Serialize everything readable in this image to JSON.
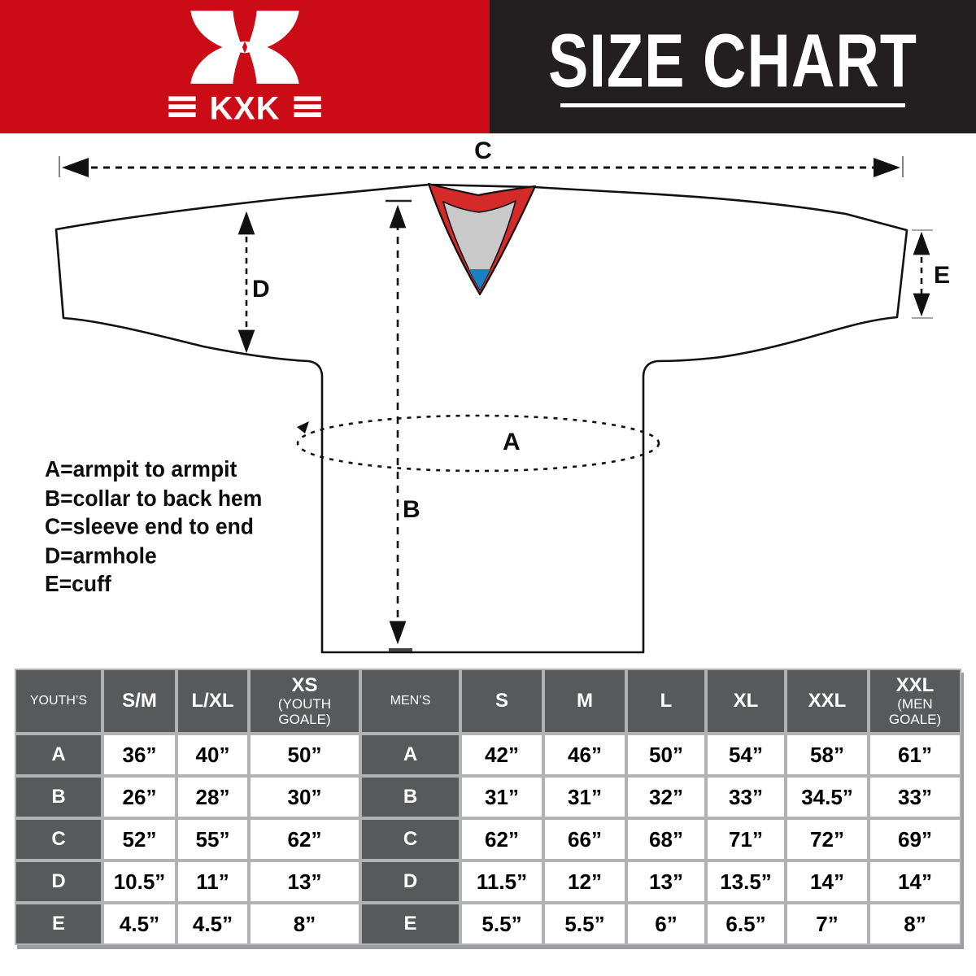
{
  "brand": {
    "name": "KXK",
    "logo_icon": "kxk-x-logo",
    "logo_text": "KXK"
  },
  "header": {
    "title": "SIZE CHART"
  },
  "colors": {
    "brand_red": "#cb0b15",
    "banner_black": "#231f20",
    "collar_red": "#d42a2a",
    "collar_inner_gray": "#c9c9c9",
    "collar_blue": "#1a80c4",
    "table_header_gray": "#58595b",
    "table_gap_gray": "#b0b2b4"
  },
  "diagram": {
    "labels": {
      "a": "A",
      "b": "B",
      "c": "C",
      "d": "D",
      "e": "E"
    },
    "legend": [
      "A=armpit to armpit",
      "B=collar to back hem",
      "C=sleeve end to end",
      "D=armhole",
      "E=cuff"
    ]
  },
  "size_table": {
    "youth": {
      "group_label": "YOUTH’S",
      "columns": [
        "S/M",
        "L/XL",
        "XS"
      ],
      "column_subs": [
        "",
        "",
        "(YOUTH GOALE)"
      ],
      "rows": [
        {
          "label": "A",
          "values": [
            "36”",
            "40”",
            "50”"
          ]
        },
        {
          "label": "B",
          "values": [
            "26”",
            "28”",
            "30”"
          ]
        },
        {
          "label": "C",
          "values": [
            "52”",
            "55”",
            "62”"
          ]
        },
        {
          "label": "D",
          "values": [
            "10.5”",
            "11”",
            "13”"
          ]
        },
        {
          "label": "E",
          "values": [
            "4.5”",
            "4.5”",
            "8”"
          ]
        }
      ]
    },
    "men": {
      "group_label": "MEN’S",
      "columns": [
        "S",
        "M",
        "L",
        "XL",
        "XXL",
        "XXL"
      ],
      "column_subs": [
        "",
        "",
        "",
        "",
        "",
        "(MEN GOALE)"
      ],
      "rows": [
        {
          "label": "A",
          "values": [
            "42”",
            "46”",
            "50”",
            "54”",
            "58”",
            "61”"
          ]
        },
        {
          "label": "B",
          "values": [
            "31”",
            "31”",
            "32”",
            "33”",
            "34.5”",
            "33”"
          ]
        },
        {
          "label": "C",
          "values": [
            "62”",
            "66”",
            "68”",
            "71”",
            "72”",
            "69”"
          ]
        },
        {
          "label": "D",
          "values": [
            "11.5”",
            "12”",
            "13”",
            "13.5”",
            "14”",
            "14”"
          ]
        },
        {
          "label": "E",
          "values": [
            "5.5”",
            "5.5”",
            "6”",
            "6.5”",
            "7”",
            "8”"
          ]
        }
      ]
    }
  }
}
